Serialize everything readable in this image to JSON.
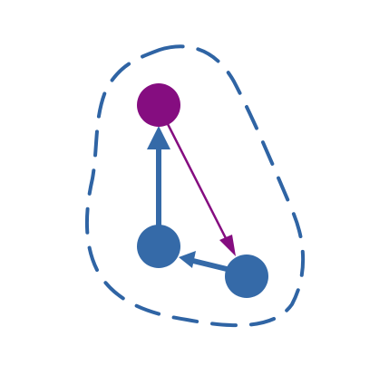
{
  "diagram": {
    "colors": {
      "background": "#ffffff",
      "boundary": "#2f64a4",
      "node_blue": "#356aa8",
      "node_purple": "#850d80",
      "edge_blue": "#356aa8",
      "edge_purple": "#850d80"
    },
    "nodes": [
      {
        "id": "top",
        "color_key": "node_purple"
      },
      {
        "id": "left",
        "color_key": "node_blue"
      },
      {
        "id": "right",
        "color_key": "node_blue"
      }
    ],
    "edges": [
      {
        "from": "left",
        "to": "top",
        "color_key": "edge_blue"
      },
      {
        "from": "top",
        "to": "right",
        "color_key": "edge_purple"
      },
      {
        "from": "right",
        "to": "left",
        "color_key": "edge_blue"
      }
    ],
    "boundary": {
      "style": "dashed"
    }
  }
}
